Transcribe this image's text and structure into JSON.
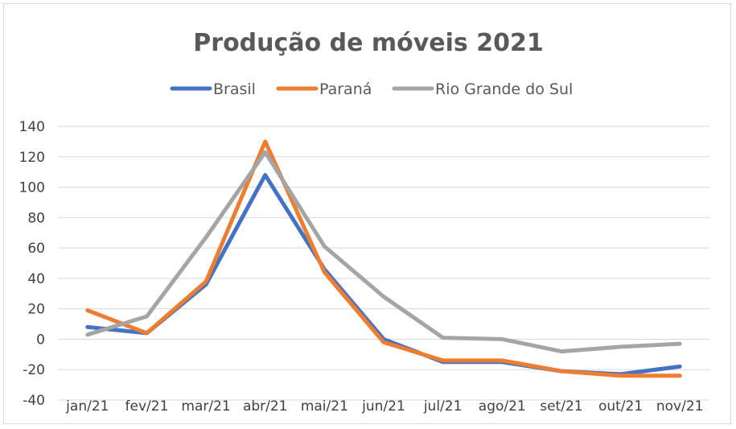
{
  "chart_data": {
    "type": "line",
    "title": "Produção de móveis 2021",
    "categories": [
      "jan/21",
      "fev/21",
      "mar/21",
      "abr/21",
      "mai/21",
      "jun/21",
      "jul/21",
      "ago/21",
      "set/21",
      "out/21",
      "nov/21"
    ],
    "series": [
      {
        "name": "Brasil",
        "color": "#4472c4",
        "values": [
          8,
          4,
          36,
          108,
          46,
          0,
          -15,
          -15,
          -21,
          -23,
          -18
        ]
      },
      {
        "name": "Paraná",
        "color": "#ed7d31",
        "values": [
          19,
          4,
          38,
          130,
          44,
          -2,
          -14,
          -14,
          -21,
          -24,
          -24
        ]
      },
      {
        "name": "Rio Grande do Sul",
        "color": "#a5a5a5",
        "values": [
          3,
          15,
          67,
          123,
          61,
          28,
          1,
          0,
          -8,
          -5,
          -3
        ]
      }
    ],
    "ylim": [
      -40,
      140
    ],
    "yticks": [
      -40,
      -20,
      0,
      20,
      40,
      60,
      80,
      100,
      120,
      140
    ],
    "grid": true,
    "legend_position": "top"
  }
}
